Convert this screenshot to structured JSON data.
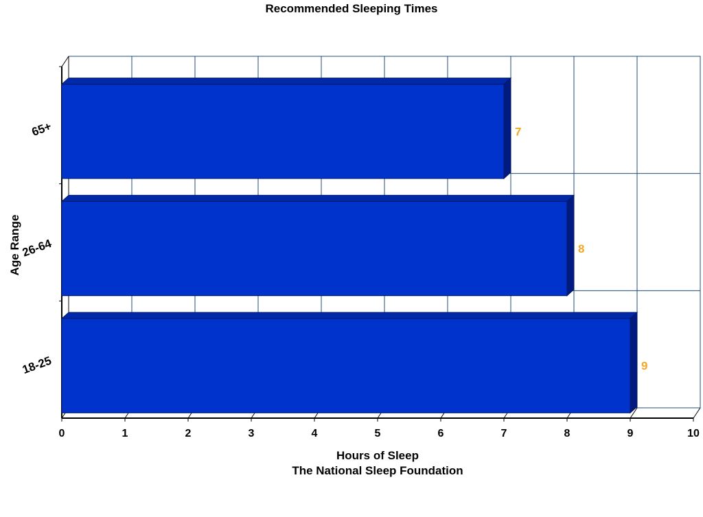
{
  "chart_data": {
    "type": "bar",
    "orientation": "horizontal",
    "title": "Recommended Sleeping Times",
    "xlabel": "Hours of Sleep",
    "xlabel_sub": "The National Sleep Foundation",
    "ylabel": "Age Range",
    "categories": [
      "18-25",
      "26-64",
      "65+"
    ],
    "values": [
      9,
      8,
      7
    ],
    "xlim": [
      0,
      10
    ],
    "xticks": [
      0,
      1,
      2,
      3,
      4,
      5,
      6,
      7,
      8,
      9,
      10
    ],
    "grid": true,
    "bar_style": "3d",
    "colors": {
      "bar_face": "#0033cc",
      "bar_top": "#0028a8",
      "bar_side": "#001a80",
      "data_label": "#f5a623",
      "grid": "#1f4e79",
      "axis": "#000000"
    }
  }
}
